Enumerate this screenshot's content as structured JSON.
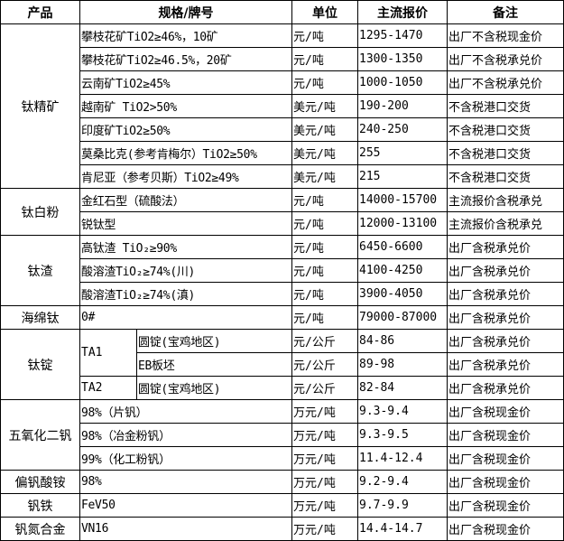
{
  "headers": {
    "product": "产品",
    "spec": "规格/牌号",
    "unit": "单位",
    "price": "主流报价",
    "note": "备注"
  },
  "groups": [
    {
      "product": "钛精矿",
      "rows": [
        {
          "spec": "攀枝花矿TiO2≥46%，10矿",
          "unit": "元/吨",
          "price": "1295-1470",
          "note": "出厂不含税现金价"
        },
        {
          "spec": "攀枝花矿TiO2≥46.5%，20矿",
          "unit": "元/吨",
          "price": "1300-1350",
          "note": "出厂不含税承兑价"
        },
        {
          "spec": "云南矿TiO2≥45%",
          "unit": "元/吨",
          "price": "1000-1050",
          "note": "出厂不含税承兑价"
        },
        {
          "spec": "越南矿 TiO2>50%",
          "unit": "美元/吨",
          "price": "190-200",
          "note": "不含税港口交货"
        },
        {
          "spec": "印度矿TiO2≥50%",
          "unit": "美元/吨",
          "price": "240-250",
          "note": "不含税港口交货"
        },
        {
          "spec": "莫桑比克(参考肯梅尔）TiO2≥50%",
          "unit": "美元/吨",
          "price": "255",
          "note": "不含税港口交货"
        },
        {
          "spec": "肯尼亚（参考贝斯）TiO2≥49%",
          "unit": "美元/吨",
          "price": "215",
          "note": "不含税港口交货"
        }
      ]
    },
    {
      "product": "钛白粉",
      "rows": [
        {
          "spec": "金红石型（硫酸法）",
          "unit": "元/吨",
          "price": "14000-15700",
          "note": "主流报价含税承兑"
        },
        {
          "spec": "锐钛型",
          "unit": "元/吨",
          "price": "12000-13100",
          "note": "主流报价含税承兑"
        }
      ]
    },
    {
      "product": "钛渣",
      "rows": [
        {
          "spec": "高钛渣 TiO₂≥90%",
          "unit": "元/吨",
          "price": "6450-6600",
          "note": "出厂含税承兑价"
        },
        {
          "spec": "酸溶渣TiO₂≥74%(川)",
          "unit": "元/吨",
          "price": "4100-4250",
          "note": "出厂含税承兑价"
        },
        {
          "spec": "酸溶渣TiO₂≥74%(滇)",
          "unit": "元/吨",
          "price": "3900-4050",
          "note": "出厂含税承兑价"
        }
      ]
    },
    {
      "product": "海绵钛",
      "rows": [
        {
          "spec": "0#",
          "unit": "元/吨",
          "price": "79000-87000",
          "note": "出厂含税承兑价"
        }
      ]
    },
    {
      "product": "钛锭",
      "rows": [
        {
          "grade": "TA1",
          "spec": "圆锭(宝鸡地区)",
          "unit": "元/公斤",
          "price": "84-86",
          "note": "出厂含税承兑价"
        },
        {
          "spec": "EB板坯",
          "unit": "元/公斤",
          "price": "89-98",
          "note": "出厂含税承兑价"
        },
        {
          "grade": "TA2",
          "spec": "圆锭(宝鸡地区)",
          "unit": "元/公斤",
          "price": "82-84",
          "note": "出厂含税承兑价"
        }
      ]
    },
    {
      "product": "五氧化二钒",
      "rows": [
        {
          "spec": "98%（片钒）",
          "unit": "万元/吨",
          "price": "9.3-9.4",
          "note": "出厂含税现金价"
        },
        {
          "spec": "98%（冶金粉钒）",
          "unit": "万元/吨",
          "price": "9.3-9.5",
          "note": "出厂含税现金价"
        },
        {
          "spec": "99%（化工粉钒）",
          "unit": "万元/吨",
          "price": "11.4-12.4",
          "note": "出厂含税现金价"
        }
      ]
    },
    {
      "product": "偏钒酸铵",
      "rows": [
        {
          "spec": "98%",
          "unit": "万元/吨",
          "price": "9.2-9.4",
          "note": "出厂含税现金价"
        }
      ]
    },
    {
      "product": "钒铁",
      "rows": [
        {
          "spec": "FeV50",
          "unit": "万元/吨",
          "price": "9.7-9.9",
          "note": "出厂含税现金价"
        }
      ]
    },
    {
      "product": "钒氮合金",
      "rows": [
        {
          "spec": "VN16",
          "unit": "万元/吨",
          "price": "14.4-14.7",
          "note": "出厂含税现金价"
        }
      ]
    }
  ]
}
